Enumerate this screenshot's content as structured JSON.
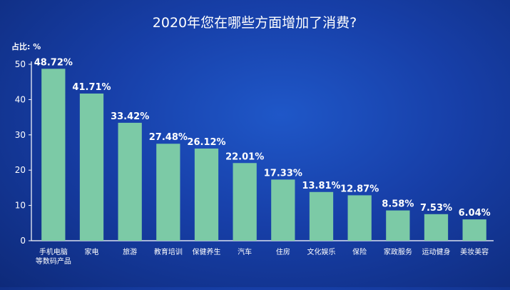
{
  "chart_data": {
    "type": "bar",
    "title": "2020年您在哪些方面增加了消费?",
    "ylabel": "占比: %",
    "ylim": [
      0,
      50
    ],
    "yticks": [
      0,
      10,
      20,
      30,
      40,
      50
    ],
    "grid": false,
    "categories": [
      [
        "手机电脑",
        "等数码产品"
      ],
      [
        "家电"
      ],
      [
        "旅游"
      ],
      [
        "教育培训"
      ],
      [
        "保健养生"
      ],
      [
        "汽车"
      ],
      [
        "住房"
      ],
      [
        "文化娱乐"
      ],
      [
        "保险"
      ],
      [
        "家政服务"
      ],
      [
        "运动健身"
      ],
      [
        "美妆美容"
      ]
    ],
    "values": [
      48.72,
      41.71,
      33.42,
      27.48,
      26.12,
      22.01,
      17.33,
      13.81,
      12.87,
      8.58,
      7.53,
      6.04
    ],
    "value_labels": [
      "48.72%",
      "41.71%",
      "33.42%",
      "27.48%",
      "26.12%",
      "22.01%",
      "17.33%",
      "13.81%",
      "12.87%",
      "8.58%",
      "7.53%",
      "6.04%"
    ],
    "colors": {
      "bar": "#7ccaa6",
      "text": "#ffffff",
      "axis": "#ffffff"
    }
  }
}
